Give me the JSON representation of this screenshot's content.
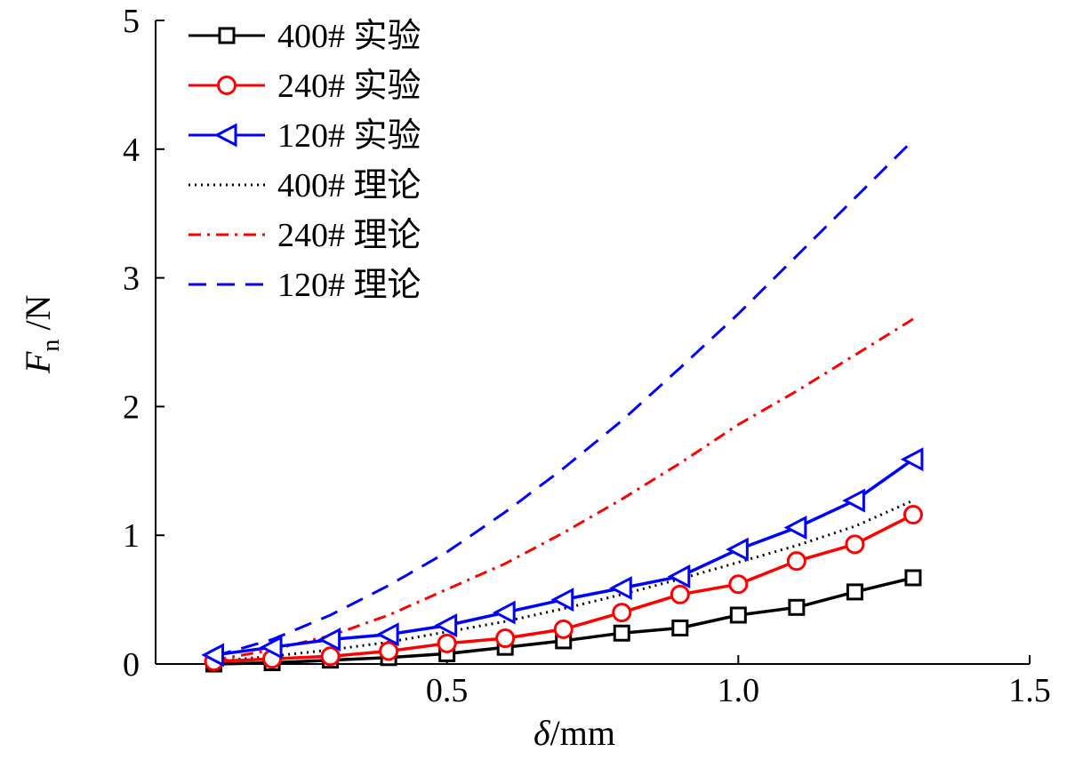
{
  "chart_data": {
    "type": "line",
    "title": "",
    "xlabel": {
      "symbol": "δ",
      "unit": "/mm"
    },
    "ylabel": {
      "symbol": "F",
      "subscript": "n",
      "unit": "/N"
    },
    "xlim": [
      0,
      1.5
    ],
    "ylim": [
      0,
      5
    ],
    "xticks": [
      0.5,
      1.0,
      1.5
    ],
    "xtick_labels": [
      "0.5",
      "1.0",
      "1.5"
    ],
    "yticks": [
      0,
      1,
      2,
      3,
      4,
      5
    ],
    "ytick_labels": [
      "0",
      "1",
      "2",
      "3",
      "4",
      "5"
    ],
    "grid": false,
    "legend_position": "top-left",
    "series": [
      {
        "name": "400# 实验",
        "color": "#000000",
        "style": "solid",
        "marker": "square",
        "x": [
          0.1,
          0.2,
          0.3,
          0.4,
          0.5,
          0.6,
          0.7,
          0.8,
          0.9,
          1.0,
          1.1,
          1.2,
          1.3
        ],
        "y": [
          0.0,
          0.01,
          0.03,
          0.05,
          0.08,
          0.13,
          0.18,
          0.24,
          0.28,
          0.38,
          0.44,
          0.56,
          0.67
        ]
      },
      {
        "name": "240# 实验",
        "color": "#ff0000",
        "style": "solid",
        "marker": "circle",
        "x": [
          0.1,
          0.2,
          0.3,
          0.4,
          0.5,
          0.6,
          0.7,
          0.8,
          0.9,
          1.0,
          1.1,
          1.2,
          1.3
        ],
        "y": [
          0.02,
          0.04,
          0.06,
          0.1,
          0.16,
          0.2,
          0.27,
          0.4,
          0.54,
          0.62,
          0.8,
          0.93,
          1.16
        ]
      },
      {
        "name": "120# 实验",
        "color": "#0000ff",
        "style": "solid",
        "marker": "triangle-left",
        "x": [
          0.1,
          0.2,
          0.3,
          0.4,
          0.5,
          0.6,
          0.7,
          0.8,
          0.9,
          1.0,
          1.1,
          1.2,
          1.3
        ],
        "y": [
          0.07,
          0.13,
          0.19,
          0.23,
          0.3,
          0.4,
          0.5,
          0.59,
          0.68,
          0.89,
          1.06,
          1.27,
          1.59
        ]
      },
      {
        "name": "400# 理论",
        "color": "#000000",
        "style": "dotted",
        "marker": "none",
        "x": [
          0.1,
          0.2,
          0.3,
          0.4,
          0.5,
          0.6,
          0.7,
          0.8,
          0.9,
          1.0,
          1.1,
          1.2,
          1.3
        ],
        "y": [
          0.02,
          0.06,
          0.11,
          0.17,
          0.25,
          0.33,
          0.43,
          0.54,
          0.66,
          0.79,
          0.92,
          1.07,
          1.27
        ]
      },
      {
        "name": "240# 理论",
        "color": "#ff0000",
        "style": "dashdot",
        "marker": "none",
        "x": [
          0.1,
          0.2,
          0.3,
          0.4,
          0.5,
          0.6,
          0.7,
          0.8,
          0.9,
          1.0,
          1.1,
          1.2,
          1.3
        ],
        "y": [
          0.03,
          0.11,
          0.22,
          0.38,
          0.58,
          0.78,
          1.02,
          1.28,
          1.56,
          1.86,
          2.12,
          2.4,
          2.68
        ]
      },
      {
        "name": "120# 理论",
        "color": "#0000ff",
        "style": "dashed",
        "marker": "none",
        "x": [
          0.1,
          0.2,
          0.3,
          0.4,
          0.5,
          0.6,
          0.7,
          0.8,
          0.9,
          1.0,
          1.1,
          1.2,
          1.3
        ],
        "y": [
          0.06,
          0.19,
          0.38,
          0.61,
          0.87,
          1.18,
          1.52,
          1.89,
          2.3,
          2.72,
          3.17,
          3.62,
          4.07
        ]
      }
    ]
  }
}
